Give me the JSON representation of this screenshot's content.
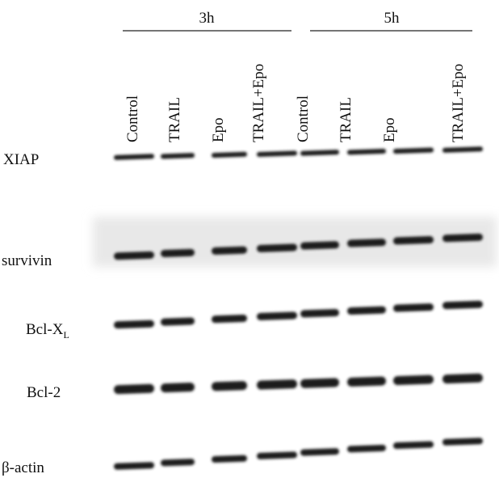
{
  "groups": [
    {
      "label": "3h"
    },
    {
      "label": "5h"
    }
  ],
  "lanes": [
    "Control",
    "TRAIL",
    "Epo",
    "TRAIL+Epo",
    "Control",
    "TRAIL",
    "Epo",
    "TRAIL+Epo"
  ],
  "rows": [
    {
      "label": "XIAP"
    },
    {
      "label": "survivin"
    },
    {
      "label": "Bcl-X",
      "subscript": "L"
    },
    {
      "label": "Bcl-2"
    },
    {
      "label": "β-actin"
    }
  ]
}
